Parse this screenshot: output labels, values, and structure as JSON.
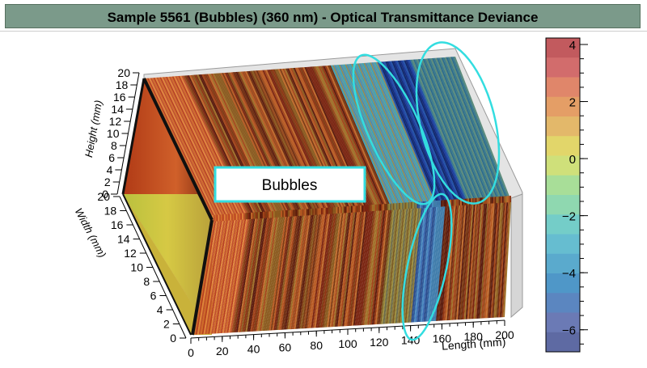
{
  "title": "Sample 5561 (Bubbles) (360 nm) - Optical Transmittance Deviance",
  "chart_data": {
    "type": "heatmap",
    "title": "Sample 5561 (Bubbles) (360 nm) - Optical Transmittance Deviance",
    "x_axis": {
      "label": "Length (mm)",
      "range": [
        0,
        200
      ],
      "ticks": [
        "0",
        "20",
        "40",
        "60",
        "80",
        "100",
        "120",
        "140",
        "160",
        "180",
        "200"
      ]
    },
    "y_axis": {
      "label": "Width (mm)",
      "range": [
        0,
        20
      ],
      "ticks": [
        "0",
        "2",
        "4",
        "6",
        "8",
        "10",
        "12",
        "14",
        "16",
        "18",
        "20"
      ]
    },
    "z_axis": {
      "label": "Height (mm)",
      "range": [
        0,
        20
      ],
      "ticks": [
        "0",
        "2",
        "4",
        "6",
        "8",
        "10",
        "12",
        "14",
        "16",
        "18",
        "20"
      ]
    },
    "colorbar": {
      "range": [
        -7,
        4
      ],
      "ticks": [
        "4",
        "2",
        "0",
        "−2",
        "−4",
        "−6"
      ]
    },
    "annotation": "Bubbles",
    "highlight": {
      "label": "Bubbles",
      "length_range_mm": [
        135,
        165
      ]
    }
  }
}
